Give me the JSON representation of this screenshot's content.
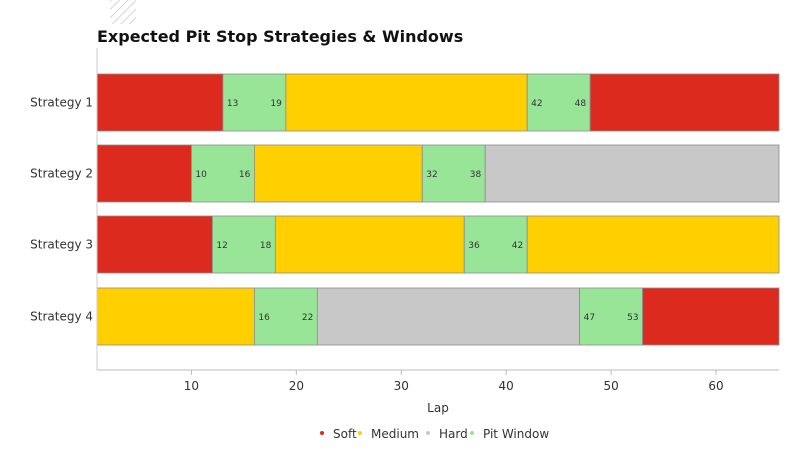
{
  "chart_data": {
    "type": "bar",
    "orientation": "horizontal-stacked",
    "title": "Expected Pit Stop Strategies & Windows",
    "xlabel": "Lap",
    "ylabel": "",
    "xlim": [
      1,
      66
    ],
    "xticks": [
      10,
      20,
      30,
      40,
      50,
      60
    ],
    "grid": false,
    "legend_position": "bottom",
    "legend": [
      {
        "name": "Soft",
        "color": "#dc2a1f"
      },
      {
        "name": "Medium",
        "color": "#ffcf00"
      },
      {
        "name": "Hard",
        "color": "#c8c8c8"
      },
      {
        "name": "Pit Window",
        "color": "#98e598"
      }
    ],
    "strategies": [
      {
        "name": "Strategy 1",
        "segments": [
          {
            "compound": "Soft",
            "start": 1,
            "end": 13
          },
          {
            "compound": "Pit Window",
            "start": 13,
            "end": 19,
            "labels": [
              "13",
              "19"
            ]
          },
          {
            "compound": "Medium",
            "start": 19,
            "end": 42
          },
          {
            "compound": "Pit Window",
            "start": 42,
            "end": 48,
            "labels": [
              "42",
              "48"
            ]
          },
          {
            "compound": "Soft",
            "start": 48,
            "end": 66
          }
        ]
      },
      {
        "name": "Strategy 2",
        "segments": [
          {
            "compound": "Soft",
            "start": 1,
            "end": 10
          },
          {
            "compound": "Pit Window",
            "start": 10,
            "end": 16,
            "labels": [
              "10",
              "16"
            ]
          },
          {
            "compound": "Medium",
            "start": 16,
            "end": 32
          },
          {
            "compound": "Pit Window",
            "start": 32,
            "end": 38,
            "labels": [
              "32",
              "38"
            ]
          },
          {
            "compound": "Hard",
            "start": 38,
            "end": 66
          }
        ]
      },
      {
        "name": "Strategy 3",
        "segments": [
          {
            "compound": "Soft",
            "start": 1,
            "end": 12
          },
          {
            "compound": "Pit Window",
            "start": 12,
            "end": 18,
            "labels": [
              "12",
              "18"
            ]
          },
          {
            "compound": "Medium",
            "start": 18,
            "end": 36
          },
          {
            "compound": "Pit Window",
            "start": 36,
            "end": 42,
            "labels": [
              "36",
              "42"
            ]
          },
          {
            "compound": "Medium",
            "start": 42,
            "end": 66
          }
        ]
      },
      {
        "name": "Strategy 4",
        "segments": [
          {
            "compound": "Medium",
            "start": 1,
            "end": 16
          },
          {
            "compound": "Pit Window",
            "start": 16,
            "end": 22,
            "labels": [
              "16",
              "22"
            ]
          },
          {
            "compound": "Hard",
            "start": 22,
            "end": 47
          },
          {
            "compound": "Pit Window",
            "start": 47,
            "end": 53,
            "labels": [
              "47",
              "53"
            ]
          },
          {
            "compound": "Soft",
            "start": 53,
            "end": 66
          }
        ]
      }
    ]
  }
}
